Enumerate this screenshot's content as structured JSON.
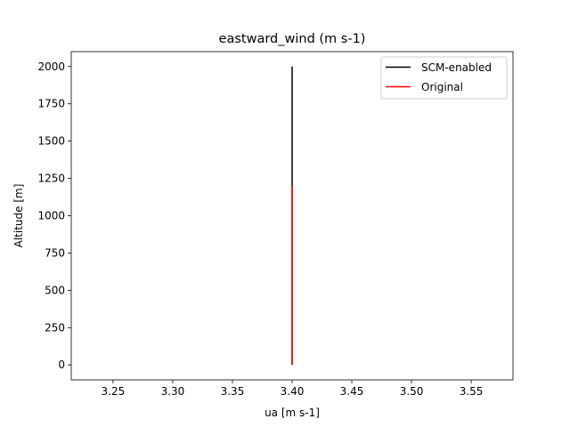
{
  "chart_data": {
    "type": "line",
    "title": "eastward_wind (m s-1)",
    "xlabel": "ua [m s-1]",
    "ylabel": "Altitude [m]",
    "xlim": [
      3.215,
      3.585
    ],
    "ylim": [
      -100,
      2100
    ],
    "xticks": [
      "3.25",
      "3.30",
      "3.35",
      "3.40",
      "3.45",
      "3.50",
      "3.55"
    ],
    "xtick_values": [
      3.25,
      3.3,
      3.35,
      3.4,
      3.45,
      3.5,
      3.55
    ],
    "yticks": [
      "0",
      "250",
      "500",
      "750",
      "1000",
      "1250",
      "1500",
      "1750",
      "2000"
    ],
    "ytick_values": [
      0,
      250,
      500,
      750,
      1000,
      1250,
      1500,
      1750,
      2000
    ],
    "grid": false,
    "legend_position": "top-right",
    "series": [
      {
        "name": "SCM-enabled",
        "color": "#000000",
        "x": [
          3.4,
          3.4
        ],
        "y": [
          0,
          2000
        ]
      },
      {
        "name": "Original",
        "color": "#ff0000",
        "x": [
          3.4,
          3.4
        ],
        "y": [
          0,
          1200
        ]
      }
    ]
  }
}
